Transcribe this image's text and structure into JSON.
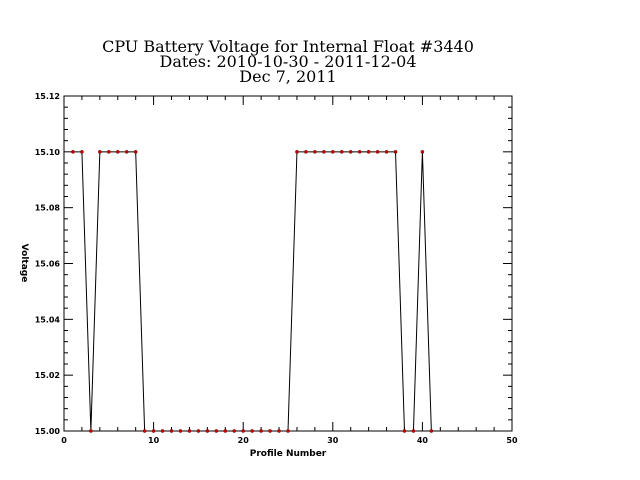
{
  "chart_data": {
    "type": "line",
    "title_lines": [
      "CPU Battery Voltage for Internal Float #3440",
      "Dates:  2010-10-30 -  2011-12-04",
      "Dec  7, 2011"
    ],
    "xlabel": "Profile Number",
    "ylabel": "Voltage",
    "xlim": [
      0,
      50
    ],
    "ylim": [
      15.0,
      15.12
    ],
    "x_ticks": [
      0,
      10,
      20,
      30,
      40,
      50
    ],
    "y_ticks": [
      "15.00",
      "15.02",
      "15.04",
      "15.06",
      "15.08",
      "15.10",
      "15.12"
    ],
    "line_color": "#000000",
    "marker_color": "#cc0000",
    "grid": false,
    "series": [
      {
        "x": [
          1,
          2,
          3,
          4,
          5,
          6,
          7,
          8,
          9,
          10,
          11,
          12,
          13,
          14,
          15,
          16,
          17,
          18,
          19,
          20,
          21,
          22,
          23,
          24,
          25,
          26,
          27,
          28,
          29,
          30,
          31,
          32,
          33,
          34,
          35,
          36,
          37,
          38,
          39,
          40,
          41
        ],
        "y": [
          15.1,
          15.1,
          15.0,
          15.1,
          15.1,
          15.1,
          15.1,
          15.1,
          15.0,
          15.0,
          15.0,
          15.0,
          15.0,
          15.0,
          15.0,
          15.0,
          15.0,
          15.0,
          15.0,
          15.0,
          15.0,
          15.0,
          15.0,
          15.0,
          15.0,
          15.1,
          15.1,
          15.1,
          15.1,
          15.1,
          15.1,
          15.1,
          15.1,
          15.1,
          15.1,
          15.1,
          15.1,
          15.0,
          15.0,
          15.1,
          15.0
        ]
      }
    ]
  }
}
